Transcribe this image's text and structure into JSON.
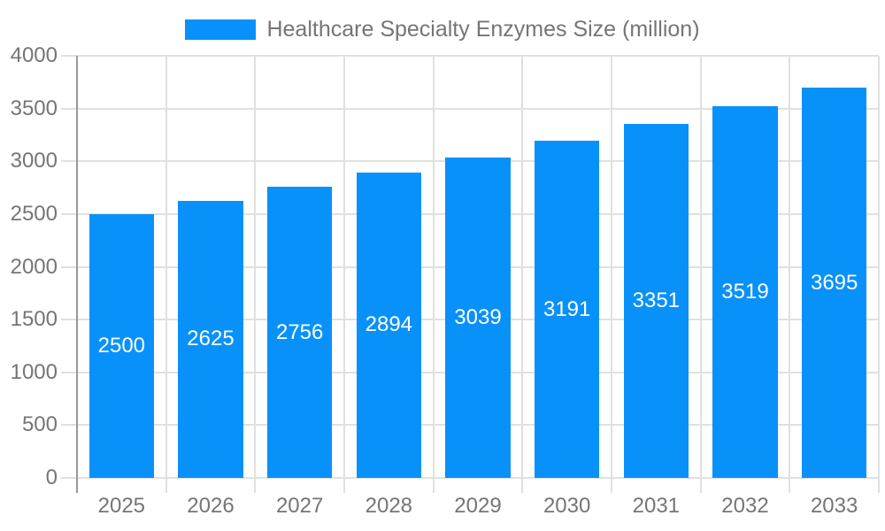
{
  "chart_data": {
    "type": "bar",
    "title": "Healthcare Specialty Enzymes Size (million)",
    "series_name": "Healthcare Specialty Enzymes Size (million)",
    "categories": [
      "2025",
      "2026",
      "2027",
      "2028",
      "2029",
      "2030",
      "2031",
      "2032",
      "2033"
    ],
    "values": [
      2500,
      2625,
      2756,
      2894,
      3039,
      3191,
      3351,
      3519,
      3695
    ],
    "xlabel": "",
    "ylabel": "",
    "ylim": [
      0,
      4000
    ],
    "yticks": [
      0,
      500,
      1000,
      1500,
      2000,
      2500,
      3000,
      3500,
      4000
    ],
    "grid": true,
    "legend_position": "top",
    "bar_labels": "inside-center"
  },
  "colors": {
    "bar": "#0991fa",
    "bar_label": "#ffffff",
    "axis_text": "#757575",
    "grid": "#e0e0e0",
    "axis_line": "#9499a0",
    "background": "#ffffff"
  }
}
